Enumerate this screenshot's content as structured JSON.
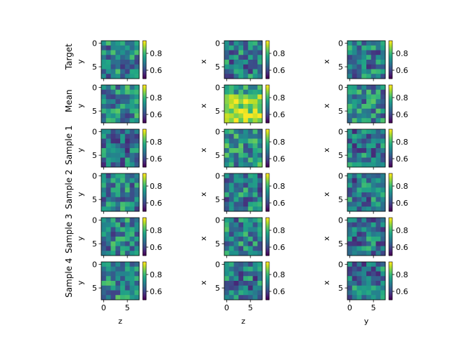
{
  "chart_data": {
    "type": "heatmap",
    "grid_rows": 6,
    "grid_cols": 3,
    "matrix_size": 8,
    "colormap": "viridis",
    "row_labels": [
      "Target",
      "Mean",
      "Sample 1",
      "Sample 2",
      "Sample 3",
      "Sample 4"
    ],
    "col_ylabels": [
      "y",
      "x",
      "x"
    ],
    "col_xlabels": [
      "z",
      "z",
      "y"
    ],
    "x_ticks": [
      0,
      5
    ],
    "y_ticks": [
      0,
      5
    ],
    "colorbar_ticks": [
      0.6,
      0.8
    ],
    "colorbar_tick_labels": [
      "0.6",
      "0.8"
    ],
    "value_range": [
      0.5,
      0.95
    ],
    "panel_means": [
      [
        0.7,
        0.69,
        0.69
      ],
      [
        0.71,
        0.84,
        0.71
      ],
      [
        0.68,
        0.73,
        0.68
      ],
      [
        0.7,
        0.69,
        0.68
      ],
      [
        0.7,
        0.7,
        0.68
      ],
      [
        0.71,
        0.68,
        0.68
      ]
    ],
    "note_values": "cell values are per-panel 8x8 fields; approximate, generated from panel means with a seeded pattern in the script"
  }
}
